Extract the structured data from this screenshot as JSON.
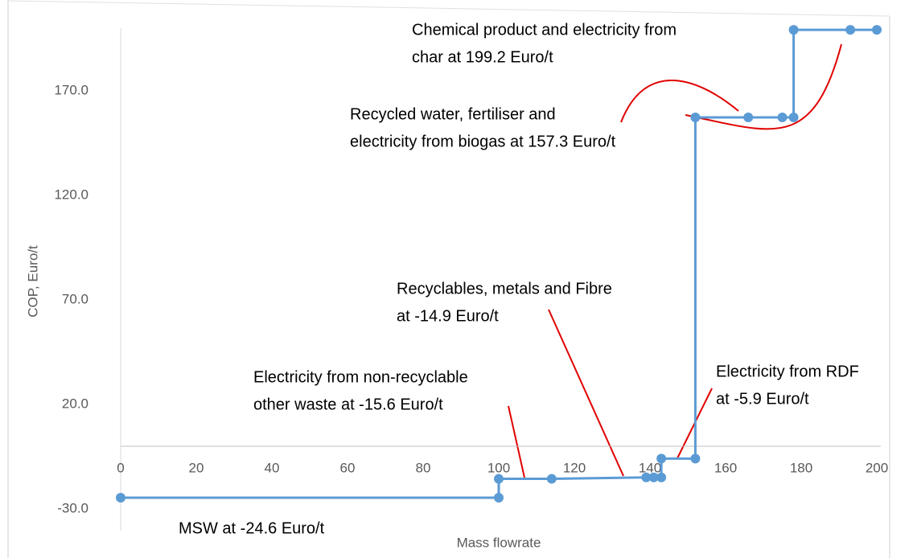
{
  "chart_data": {
    "type": "line",
    "x_label": "Mass flowrate",
    "y_label": "COP, Euro/t",
    "x": [
      0,
      100,
      100,
      114,
      139,
      141,
      143,
      143,
      152,
      152,
      166,
      175,
      178,
      178,
      193,
      200
    ],
    "series": [
      {
        "color": "#5b9bd5",
        "values": [
          -24.6,
          -24.6,
          -15.6,
          -15.6,
          -14.9,
          -14.9,
          -14.9,
          -5.9,
          -5.9,
          157.3,
          157.3,
          157.3,
          157.3,
          199.2,
          199.2,
          199.2
        ]
      }
    ],
    "xlim": [
      0,
      200
    ],
    "xticks": [
      0,
      20,
      40,
      60,
      80,
      100,
      120,
      140,
      160,
      180,
      200
    ],
    "ylim": [
      -30,
      200
    ],
    "yticks": [
      {
        "value": -30,
        "label": "-30.0"
      },
      {
        "value": 20,
        "label": "20.0"
      },
      {
        "value": 70,
        "label": "70.0"
      },
      {
        "value": 120,
        "label": "120.0"
      },
      {
        "value": 170,
        "label": "170.0"
      }
    ],
    "annotations": [
      {
        "lines": [
          "Chemical product and electricity from",
          "char at 199.2 Euro/t"
        ]
      },
      {
        "lines": [
          "Recycled water, fertiliser and",
          "electricity from biogas at 157.3 Euro/t"
        ]
      },
      {
        "lines": [
          "Recyclables, metals and Fibre",
          "at -14.9 Euro/t"
        ]
      },
      {
        "lines": [
          "Electricity from non-recyclable",
          "other waste at -15.6 Euro/t"
        ]
      },
      {
        "lines": [
          "Electricity from RDF",
          "at -5.9 Euro/t"
        ]
      },
      {
        "lines": [
          "MSW at -24.6 Euro/t"
        ]
      }
    ]
  }
}
